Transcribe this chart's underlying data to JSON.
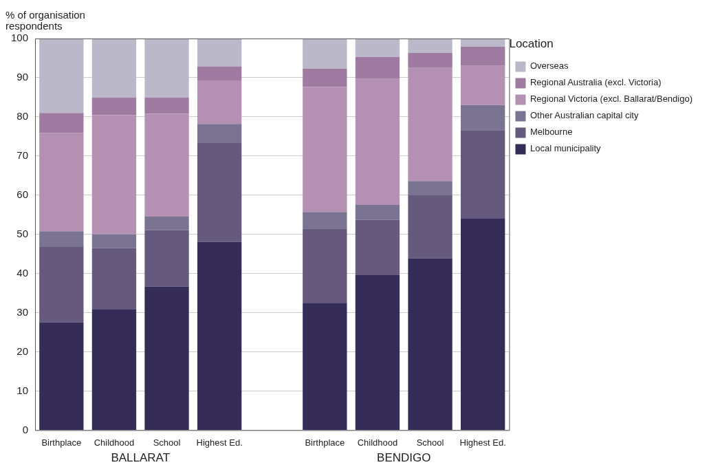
{
  "chart_data": {
    "type": "bar",
    "stacked": true,
    "ylabel": "% of organisation respondents",
    "legend_title": "Location",
    "legend": "top right",
    "grid": "y",
    "categories": [
      "Birthplace",
      "Childhood",
      "School",
      "Highest Ed.",
      null,
      "Birthplace",
      "Childhood",
      "School",
      "Highest Ed."
    ],
    "annotations": [
      "BALLARAT",
      "BENDIGO"
    ],
    "ylim": [
      0,
      100
    ],
    "yticks": [
      0,
      10,
      20,
      30,
      40,
      50,
      60,
      70,
      80,
      90,
      100
    ],
    "series": [
      {
        "name": "Local municipality",
        "color": "#352c58",
        "values": [
          27.5,
          30.8,
          36.7,
          48.1,
          null,
          32.5,
          39.6,
          43.9,
          54.1
        ]
      },
      {
        "name": "Melbourne",
        "color": "#655a7e",
        "values": [
          19.3,
          15.7,
          14.4,
          25.2,
          null,
          19.0,
          14.1,
          16.2,
          22.5
        ]
      },
      {
        "name": "Other Australian capital city",
        "color": "#7a7392",
        "values": [
          4.0,
          3.5,
          3.4,
          4.9,
          null,
          4.2,
          3.8,
          3.5,
          6.4
        ]
      },
      {
        "name": "Regional Victoria (excl. Ballarat/Bendigo)",
        "color": "#b491b3",
        "values": [
          25.1,
          30.4,
          26.3,
          11.1,
          null,
          31.9,
          32.2,
          28.9,
          10.0
        ]
      },
      {
        "name": "Regional Australia (excl. Victoria)",
        "color": "#a07ba1",
        "values": [
          5.1,
          4.5,
          4.1,
          3.6,
          null,
          4.7,
          5.6,
          3.8,
          4.9
        ]
      },
      {
        "name": "Overseas",
        "color": "#bbb9c9",
        "values": [
          19.0,
          15.1,
          15.1,
          7.1,
          null,
          7.7,
          4.7,
          3.7,
          2.1
        ]
      }
    ]
  }
}
